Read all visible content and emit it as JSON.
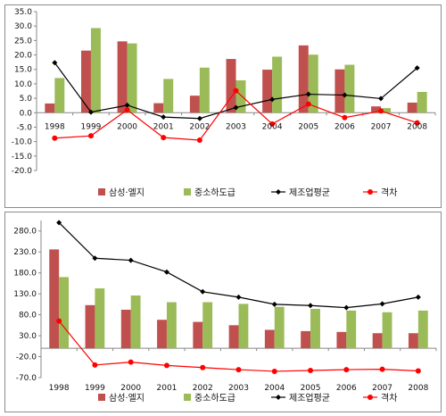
{
  "colors": {
    "bar1": "#c0504d",
    "bar2": "#9bbb59",
    "line1": "#000000",
    "line2": "#ff0000"
  },
  "chart_data": [
    {
      "type": "bar",
      "title": "",
      "xlabel": "",
      "ylabel": "",
      "categories": [
        "1998",
        "1999",
        "2000",
        "2001",
        "2002",
        "2003",
        "2004",
        "2005",
        "2006",
        "2007",
        "2008"
      ],
      "ylim": [
        -20,
        35
      ],
      "yticks": [
        "35.0",
        "30.0",
        "25.0",
        "20.0",
        "15.0",
        "10.0",
        "5.0",
        "0.0",
        "-5.0",
        "-10.0",
        "-15.0",
        "-20.0"
      ],
      "series": [
        {
          "name": "삼성·엘지",
          "type": "bar",
          "values": [
            3.2,
            21.5,
            24.7,
            3.3,
            5.9,
            18.6,
            14.9,
            23.3,
            15.0,
            2.2,
            3.5
          ]
        },
        {
          "name": "중소하도급",
          "type": "bar",
          "values": [
            12.0,
            29.3,
            24.0,
            11.7,
            15.6,
            11.2,
            19.4,
            20.1,
            16.6,
            1.6,
            7.2
          ]
        },
        {
          "name": "제조업평균",
          "type": "line",
          "values": [
            17.3,
            0.2,
            2.6,
            -1.5,
            -2.0,
            1.8,
            4.6,
            6.4,
            6.1,
            4.9,
            15.5
          ]
        },
        {
          "name": "격차",
          "type": "line",
          "values": [
            -8.8,
            -8.0,
            1.0,
            -8.6,
            -9.5,
            7.6,
            -3.9,
            3.0,
            -1.7,
            0.6,
            -3.5
          ]
        }
      ],
      "legend": "bottom",
      "grid": false
    },
    {
      "type": "bar",
      "title": "",
      "xlabel": "",
      "ylabel": "",
      "categories": [
        "1998",
        "1999",
        "2000",
        "2001",
        "2002",
        "2003",
        "2004",
        "2005",
        "2006",
        "2007",
        "2008"
      ],
      "ylim": [
        -70,
        305
      ],
      "yticks": [
        "280.0",
        "230.0",
        "180.0",
        "130.0",
        "80.0",
        "30.0",
        "-20.0",
        "-70.0"
      ],
      "series": [
        {
          "name": "삼성·엘지",
          "type": "bar",
          "values": [
            236,
            103,
            92,
            68,
            63,
            55,
            44,
            41,
            39,
            36,
            36
          ]
        },
        {
          "name": "중소하도급",
          "type": "bar",
          "values": [
            170,
            143,
            126,
            110,
            110,
            106,
            99,
            94,
            90,
            86,
            90
          ]
        },
        {
          "name": "제조업평균",
          "type": "line",
          "values": [
            300,
            215,
            210,
            182,
            135,
            122,
            105,
            102,
            97,
            106,
            122
          ]
        },
        {
          "name": "격차",
          "type": "line",
          "values": [
            65,
            -40,
            -33,
            -41,
            -46,
            -51,
            -55,
            -53,
            -51,
            -50,
            -54
          ]
        }
      ],
      "legend": "bottom",
      "grid": false
    }
  ]
}
